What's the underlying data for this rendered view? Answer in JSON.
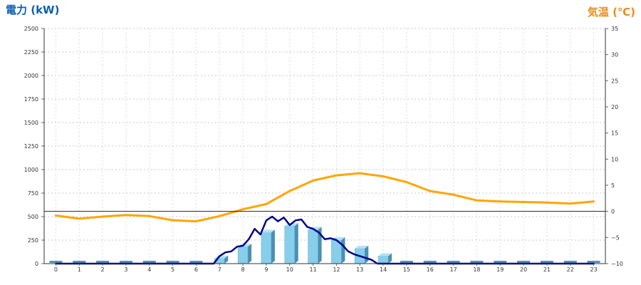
{
  "chart_data": {
    "type": "bar",
    "title_left": "電力 (kW)",
    "title_right": "気温 (℃)",
    "categories": [
      "0",
      "1",
      "2",
      "3",
      "4",
      "5",
      "6",
      "7",
      "8",
      "9",
      "10",
      "11",
      "12",
      "13",
      "14",
      "15",
      "16",
      "17",
      "18",
      "19",
      "20",
      "21",
      "22",
      "23"
    ],
    "left_axis": {
      "ylim": [
        0,
        2500
      ],
      "ticks": [
        "0",
        "250",
        "500",
        "750",
        "1000",
        "1250",
        "1500",
        "1750",
        "2000",
        "2250",
        "2500"
      ]
    },
    "right_axis": {
      "ylim": [
        -10,
        35
      ],
      "ticks": [
        "−10",
        "−5",
        "0",
        "5",
        "10",
        "15",
        "20",
        "25",
        "30",
        "35"
      ]
    },
    "grid": true,
    "series": [
      {
        "kind": "bar",
        "axis": "left",
        "color": "#87ceeb",
        "values": [
          0,
          0,
          0,
          0,
          0,
          0,
          0,
          55,
          180,
          330,
          400,
          360,
          250,
          160,
          80,
          0,
          0,
          0,
          0,
          0,
          0,
          0,
          0,
          0
        ]
      },
      {
        "kind": "line",
        "axis": "left",
        "color": "#00008b",
        "x": [
          0,
          1,
          2,
          3,
          4,
          5,
          6,
          6.75,
          7.0,
          7.25,
          7.5,
          7.75,
          8.0,
          8.25,
          8.5,
          8.75,
          9.0,
          9.25,
          9.5,
          9.75,
          10.0,
          10.25,
          10.5,
          10.75,
          11.0,
          11.25,
          11.5,
          11.75,
          12.0,
          12.25,
          12.5,
          12.75,
          13.0,
          13.25,
          13.5,
          13.75,
          14.0,
          14.25,
          14.5,
          15,
          16,
          17,
          18,
          19,
          20,
          21,
          22,
          23
        ],
        "values": [
          0,
          0,
          0,
          0,
          0,
          0,
          0,
          0,
          80,
          120,
          130,
          180,
          190,
          260,
          370,
          310,
          460,
          500,
          450,
          490,
          410,
          460,
          470,
          390,
          370,
          330,
          260,
          270,
          250,
          200,
          130,
          100,
          80,
          60,
          40,
          0,
          0,
          0,
          0,
          0,
          0,
          0,
          0,
          0,
          0,
          0,
          0,
          0
        ]
      },
      {
        "kind": "line",
        "axis": "right",
        "color": "#ffa500",
        "values": [
          -0.8,
          -1.4,
          -1.0,
          -0.7,
          -0.9,
          -1.7,
          -1.9,
          -0.9,
          0.4,
          1.4,
          3.9,
          5.9,
          6.9,
          7.3,
          6.7,
          5.6,
          3.9,
          3.2,
          2.1,
          1.9,
          1.8,
          1.7,
          1.5,
          1.9
        ]
      }
    ]
  }
}
